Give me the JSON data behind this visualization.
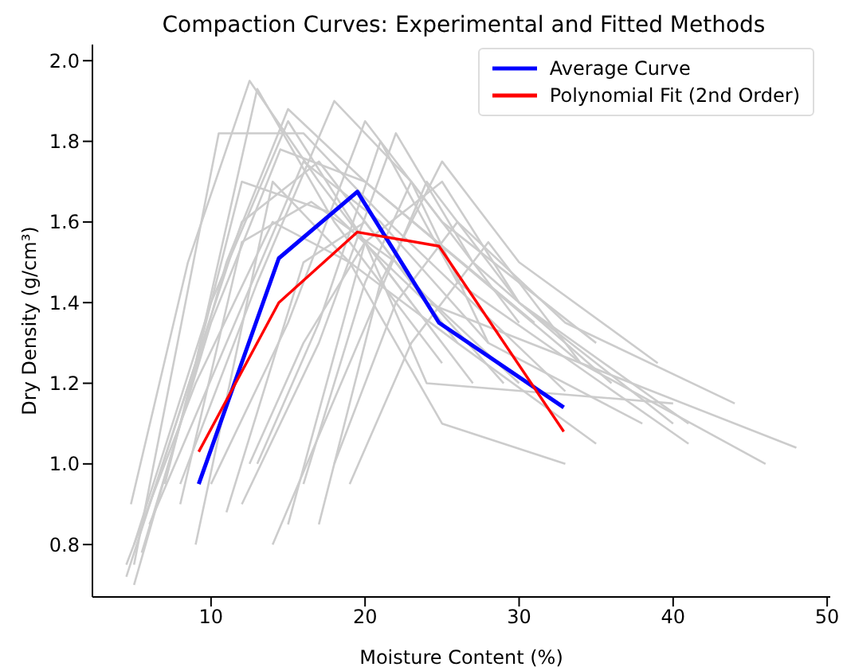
{
  "chart_data": {
    "type": "line",
    "title": "Compaction Curves: Experimental and Fitted Methods",
    "xlabel": "Moisture Content (%)",
    "ylabel": "Dry Density (g/cm³)",
    "xlim": [
      2.3,
      50.2
    ],
    "xticks": [
      10,
      20,
      30,
      40,
      50
    ],
    "ylim": [
      0.67,
      2.04
    ],
    "yticks": [
      {
        "value": 0.8,
        "label": "0.8"
      },
      {
        "value": 1.0,
        "label": "1.0"
      },
      {
        "value": 1.2,
        "label": "1.2"
      },
      {
        "value": 1.4,
        "label": "1.4"
      },
      {
        "value": 1.6,
        "label": "1.6"
      },
      {
        "value": 1.8,
        "label": "1.8"
      },
      {
        "value": 2.0,
        "label": "2.0"
      }
    ],
    "grid": false,
    "legend": "top right",
    "marker": "none",
    "line_style": "solid",
    "series": [
      {
        "color": "#cccccc",
        "x": [
          4.5,
          9,
          13,
          18,
          25
        ],
        "values": [
          0.72,
          1.25,
          1.93,
          1.6,
          1.25
        ]
      },
      {
        "color": "#cccccc",
        "x": [
          5,
          10,
          15,
          20,
          27
        ],
        "values": [
          0.8,
          1.4,
          1.85,
          1.55,
          1.2
        ]
      },
      {
        "color": "#cccccc",
        "x": [
          4.8,
          8.5,
          12.5,
          17,
          23
        ],
        "values": [
          0.9,
          1.5,
          1.95,
          1.7,
          1.4
        ]
      },
      {
        "color": "#cccccc",
        "x": [
          6,
          11,
          16,
          21,
          28
        ],
        "values": [
          0.85,
          1.3,
          1.75,
          1.6,
          1.3
        ]
      },
      {
        "color": "#cccccc",
        "x": [
          5,
          10.5,
          16,
          21.5,
          33
        ],
        "values": [
          0.75,
          1.82,
          1.82,
          1.6,
          1.18
        ]
      },
      {
        "color": "#cccccc",
        "x": [
          8,
          13,
          18,
          23,
          30
        ],
        "values": [
          0.95,
          1.45,
          1.9,
          1.7,
          1.35
        ]
      },
      {
        "color": "#cccccc",
        "x": [
          10,
          15,
          20,
          25,
          35
        ],
        "values": [
          0.95,
          1.35,
          1.85,
          1.6,
          1.3
        ]
      },
      {
        "color": "#cccccc",
        "x": [
          12,
          17,
          22,
          27,
          36
        ],
        "values": [
          0.9,
          1.3,
          1.82,
          1.5,
          1.2
        ]
      },
      {
        "color": "#cccccc",
        "x": [
          14,
          19,
          24,
          30,
          40
        ],
        "values": [
          0.8,
          1.25,
          1.7,
          1.4,
          1.1
        ]
      },
      {
        "color": "#cccccc",
        "x": [
          13,
          17,
          21,
          26,
          41
        ],
        "values": [
          1.0,
          1.35,
          1.8,
          1.45,
          1.05
        ]
      },
      {
        "color": "#cccccc",
        "x": [
          4.5,
          9,
          14,
          19,
          26
        ],
        "values": [
          0.75,
          1.2,
          1.6,
          1.5,
          1.3
        ]
      },
      {
        "color": "#cccccc",
        "x": [
          6,
          12,
          17,
          23,
          30
        ],
        "values": [
          0.9,
          1.6,
          1.75,
          1.45,
          1.2
        ]
      },
      {
        "color": "#cccccc",
        "x": [
          5,
          11,
          15,
          20,
          34
        ],
        "values": [
          0.7,
          1.5,
          1.88,
          1.7,
          1.25
        ]
      },
      {
        "color": "#cccccc",
        "x": [
          17,
          21,
          25,
          30,
          39
        ],
        "values": [
          0.85,
          1.45,
          1.75,
          1.5,
          1.25
        ]
      },
      {
        "color": "#cccccc",
        "x": [
          18,
          22,
          26,
          33,
          44
        ],
        "values": [
          1.0,
          1.4,
          1.6,
          1.35,
          1.15
        ]
      },
      {
        "color": "#cccccc",
        "x": [
          15,
          20,
          25,
          30,
          41
        ],
        "values": [
          0.85,
          1.55,
          1.7,
          1.4,
          1.1
        ]
      },
      {
        "color": "#cccccc",
        "x": [
          11,
          16,
          20,
          26,
          35
        ],
        "values": [
          0.88,
          1.5,
          1.6,
          1.3,
          1.05
        ]
      },
      {
        "color": "#cccccc",
        "x": [
          9,
          14,
          19,
          25,
          33
        ],
        "values": [
          0.8,
          1.7,
          1.5,
          1.1,
          1.0
        ]
      },
      {
        "color": "#cccccc",
        "x": [
          7,
          12,
          18,
          24,
          48
        ],
        "values": [
          0.95,
          1.7,
          1.62,
          1.4,
          1.04
        ]
      },
      {
        "color": "#cccccc",
        "x": [
          16,
          20,
          23,
          28,
          38
        ],
        "values": [
          0.95,
          1.45,
          1.7,
          1.3,
          1.1
        ]
      },
      {
        "color": "#cccccc",
        "x": [
          5.5,
          10,
          14.5,
          20,
          31
        ],
        "values": [
          0.78,
          1.35,
          1.78,
          1.7,
          1.35
        ]
      },
      {
        "color": "#cccccc",
        "x": [
          8,
          12,
          16.5,
          22,
          29
        ],
        "values": [
          0.9,
          1.55,
          1.65,
          1.5,
          1.2
        ]
      },
      {
        "color": "#cccccc",
        "x": [
          19,
          23,
          28,
          34,
          46
        ],
        "values": [
          0.95,
          1.3,
          1.55,
          1.25,
          1.0
        ]
      },
      {
        "color": "#cccccc",
        "x": [
          12.5,
          16,
          20,
          24,
          40
        ],
        "values": [
          1.0,
          1.3,
          1.55,
          1.2,
          1.15
        ]
      },
      {
        "name": "Average Curve",
        "color": "#0000ff",
        "x": [
          9.2,
          14.4,
          19.5,
          24.8,
          32.9
        ],
        "values": [
          0.95,
          1.51,
          1.675,
          1.35,
          1.14
        ]
      },
      {
        "name": "Polynomial Fit (2nd Order)",
        "color": "#ff0000",
        "x": [
          9.2,
          14.4,
          19.5,
          24.8,
          32.9
        ],
        "values": [
          1.03,
          1.4,
          1.575,
          1.54,
          1.08
        ]
      }
    ]
  }
}
